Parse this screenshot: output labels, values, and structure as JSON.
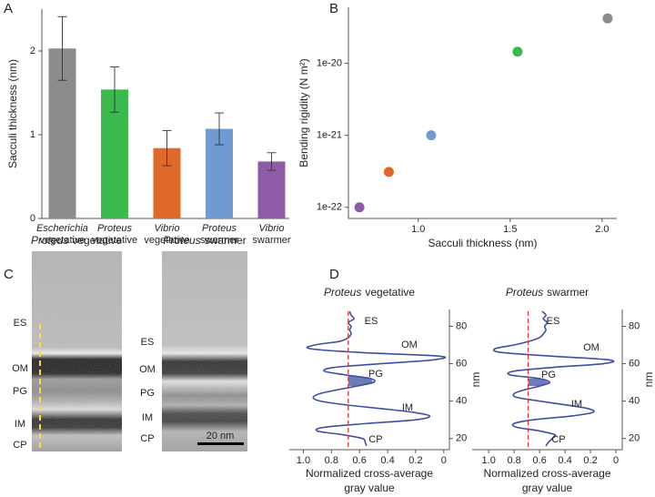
{
  "panel_labels": [
    "A",
    "B",
    "C",
    "D"
  ],
  "chart_data": [
    {
      "type": "bar",
      "ylabel": "Sacculi thickness (nm)",
      "categories": [
        [
          "Escherichia",
          "vegetative"
        ],
        [
          "Proteus",
          "vegetative"
        ],
        [
          "Vibrio",
          "vegetative"
        ],
        [
          "Proteus",
          "swarmer"
        ],
        [
          "Vibrio",
          "swarmer"
        ]
      ],
      "values": [
        2.03,
        1.54,
        0.84,
        1.07,
        0.68
      ],
      "errors": [
        0.38,
        0.27,
        0.21,
        0.19,
        0.105
      ],
      "colors": [
        "#8c8c8c",
        "#3dba4e",
        "#e0692a",
        "#6f9bd1",
        "#8e5ba6"
      ],
      "ylim": [
        0,
        2.5
      ],
      "yticks": [
        0,
        1,
        2
      ]
    },
    {
      "type": "scatter",
      "xlabel": "Sacculi thickness (nm)",
      "ylabel": "Bending rigidity (N m²)",
      "x": [
        0.68,
        0.84,
        1.07,
        1.54,
        2.03
      ],
      "values": [
        1e-22,
        3.1e-22,
        1e-21,
        1.45e-20,
        4.2e-20
      ],
      "colors": [
        "#8e5ba6",
        "#e0692a",
        "#6f9bd1",
        "#3dba4e",
        "#8c8c8c"
      ],
      "log_y": true,
      "xlim": [
        0.62,
        2.08
      ],
      "ylim": [
        7e-23,
        6e-20
      ],
      "xticks": [
        {
          "value": 1,
          "label": "1.0"
        },
        1.5,
        {
          "value": 2,
          "label": "2.0"
        }
      ],
      "yticks": [
        1e-22,
        1e-21,
        1e-20
      ]
    },
    {
      "type": "line",
      "title": [
        "Proteus",
        "vegetative"
      ],
      "xlabel": [
        "Normalized cross-average",
        "gray value"
      ],
      "ylabel": "nm",
      "y": [
        88,
        86,
        84,
        82,
        80,
        78,
        76,
        74,
        72,
        70,
        68,
        66,
        64,
        62,
        60,
        58,
        56,
        54,
        52,
        50,
        48,
        46,
        44,
        42,
        40,
        38,
        36,
        34,
        32,
        30,
        28,
        26,
        24,
        22,
        20,
        18,
        16
      ],
      "series": [
        {
          "color": "#3d4fa1",
          "values": [
            0.67,
            0.66,
            0.64,
            0.68,
            0.66,
            0.67,
            0.66,
            0.68,
            0.74,
            0.92,
            0.95,
            0.6,
            0.03,
            0.08,
            0.45,
            0.78,
            0.85,
            0.7,
            0.52,
            0.5,
            0.62,
            0.76,
            0.88,
            0.93,
            0.88,
            0.7,
            0.45,
            0.22,
            0.1,
            0.2,
            0.55,
            0.85,
            0.9,
            0.72,
            0.58,
            0.56,
            0.55
          ]
        }
      ],
      "reference_line": 0.68,
      "reference_color": "#d9343a",
      "shade_range": [
        48,
        54
      ],
      "shade_color": "#3d4fa1",
      "annotations": [
        "ES",
        "OM",
        "PG",
        "IM",
        "CP"
      ],
      "xlim": [
        1.1,
        -0.04
      ],
      "ylim": [
        14,
        89
      ],
      "xticks": [
        {
          "value": 1,
          "label": "1.0"
        },
        0.8,
        0.6,
        0.4,
        0.2,
        0
      ],
      "yticks": [
        20,
        40,
        60,
        80
      ]
    },
    {
      "type": "line",
      "title": [
        "Proteus",
        "swarmer"
      ],
      "xlabel": [
        "Normalized cross-average",
        "gray value"
      ],
      "ylabel": "nm",
      "y": [
        88,
        86,
        84,
        82,
        80,
        78,
        76,
        74,
        72,
        70,
        68,
        66,
        64,
        62,
        60,
        58,
        56,
        54,
        52,
        50,
        48,
        46,
        44,
        42,
        40,
        38,
        36,
        34,
        32,
        30,
        28,
        26,
        24,
        22,
        20,
        18,
        16
      ],
      "series": [
        {
          "color": "#3d4fa1",
          "values": [
            0.58,
            0.55,
            0.57,
            0.54,
            0.56,
            0.55,
            0.57,
            0.6,
            0.68,
            0.8,
            0.95,
            0.9,
            0.5,
            0.05,
            0.1,
            0.5,
            0.8,
            0.83,
            0.6,
            0.52,
            0.6,
            0.72,
            0.8,
            0.78,
            0.6,
            0.4,
            0.22,
            0.18,
            0.35,
            0.65,
            0.8,
            0.78,
            0.6,
            0.48,
            0.5,
            0.53,
            0.55
          ]
        }
      ],
      "reference_line": 0.69,
      "reference_color": "#d9343a",
      "shade_range": [
        48,
        52
      ],
      "shade_color": "#3d4fa1",
      "annotations": [
        "ES",
        "OM",
        "PG",
        "IM",
        "CP"
      ],
      "xlim": [
        1.13,
        -0.05
      ],
      "ylim": [
        14,
        89
      ],
      "xticks": [
        {
          "value": 1,
          "label": "1.0"
        },
        0.8,
        0.6,
        0.4,
        0.2,
        0
      ],
      "yticks": [
        20,
        40,
        60,
        80
      ]
    }
  ],
  "micrographs": [
    {
      "title": [
        "Proteus",
        "vegetative"
      ],
      "layers": [
        "ES",
        "OM",
        "PG",
        "IM",
        "CP"
      ]
    },
    {
      "title": [
        "Proteus",
        "swarmer"
      ],
      "layers": [
        "ES",
        "OM",
        "PG",
        "IM",
        "CP"
      ],
      "scale_bar": "20 nm"
    }
  ]
}
